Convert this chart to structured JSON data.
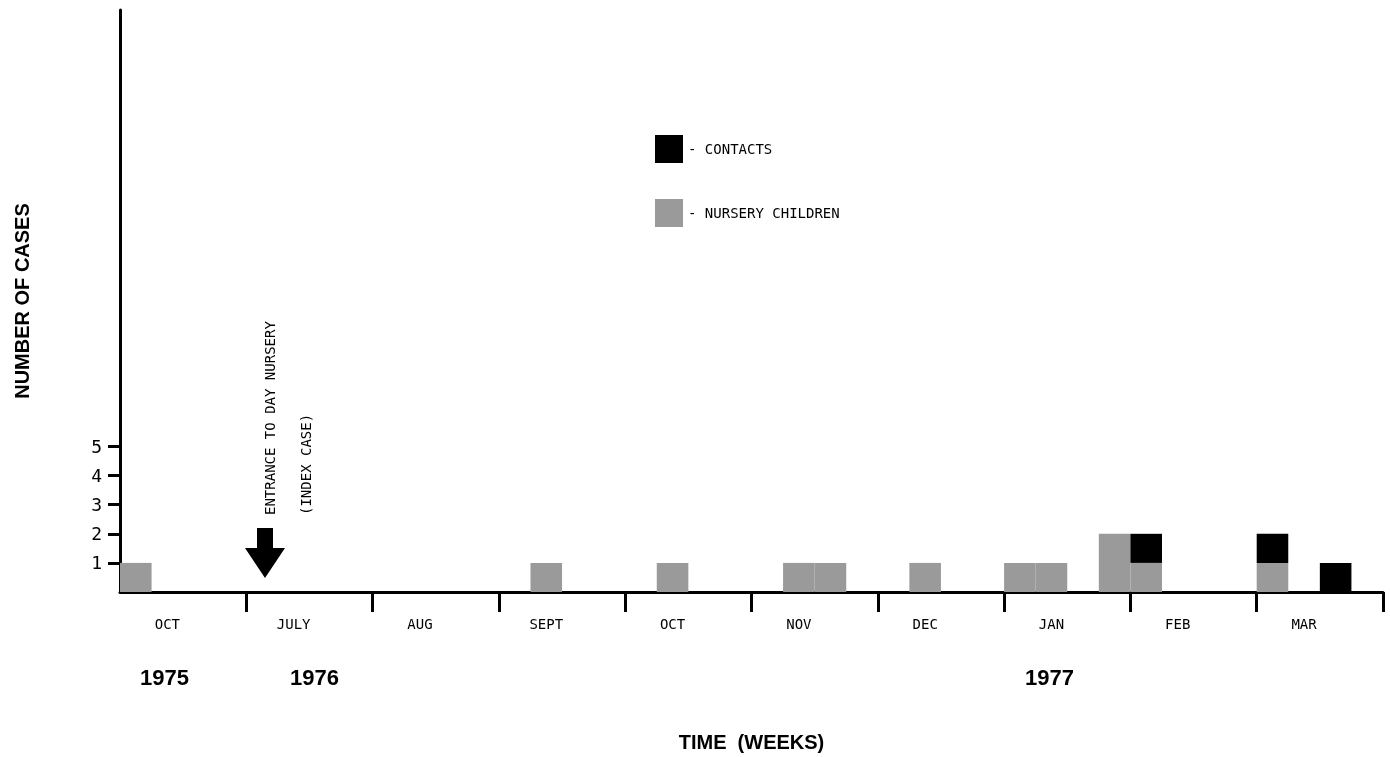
{
  "chart_data": {
    "type": "bar",
    "stacked": true,
    "xlabel": "TIME  (WEEKS)",
    "ylabel": "NUMBER OF CASES",
    "categories": [
      null,
      "OCT",
      null,
      null,
      null,
      "JULY",
      null,
      null,
      null,
      "AUG",
      null,
      null,
      null,
      "SEPT",
      null,
      null,
      null,
      "OCT",
      null,
      null,
      null,
      "NOV",
      null,
      null,
      null,
      "DEC",
      null,
      null,
      null,
      "JAN",
      null,
      null,
      null,
      "FEB",
      null,
      null,
      null,
      "MAR",
      null,
      null
    ],
    "series": [
      {
        "name": "- NURSERY CHILDREN",
        "color": "#9a9a9a",
        "values": [
          1,
          null,
          null,
          null,
          null,
          null,
          null,
          null,
          null,
          null,
          null,
          null,
          null,
          1,
          null,
          null,
          null,
          1,
          null,
          null,
          null,
          1,
          1,
          null,
          null,
          1,
          null,
          null,
          1,
          1,
          null,
          2,
          1,
          null,
          null,
          null,
          1,
          null,
          null,
          null
        ]
      },
      {
        "name": "- CONTACTS",
        "color": "#000000",
        "values": [
          null,
          null,
          null,
          null,
          null,
          null,
          null,
          null,
          null,
          null,
          null,
          null,
          null,
          null,
          null,
          null,
          null,
          null,
          null,
          null,
          null,
          null,
          null,
          null,
          null,
          null,
          null,
          null,
          null,
          null,
          null,
          null,
          1,
          null,
          null,
          null,
          1,
          null,
          1,
          null
        ]
      }
    ],
    "ylim": [
      0,
      20
    ],
    "yticks": [
      1,
      2,
      3,
      4,
      5
    ],
    "grid": false,
    "legend": "top",
    "annotations": [
      "ENTRANCE TO DAY NURSERY",
      "(INDEX CASE)",
      "1975",
      "1976",
      "1977"
    ]
  }
}
